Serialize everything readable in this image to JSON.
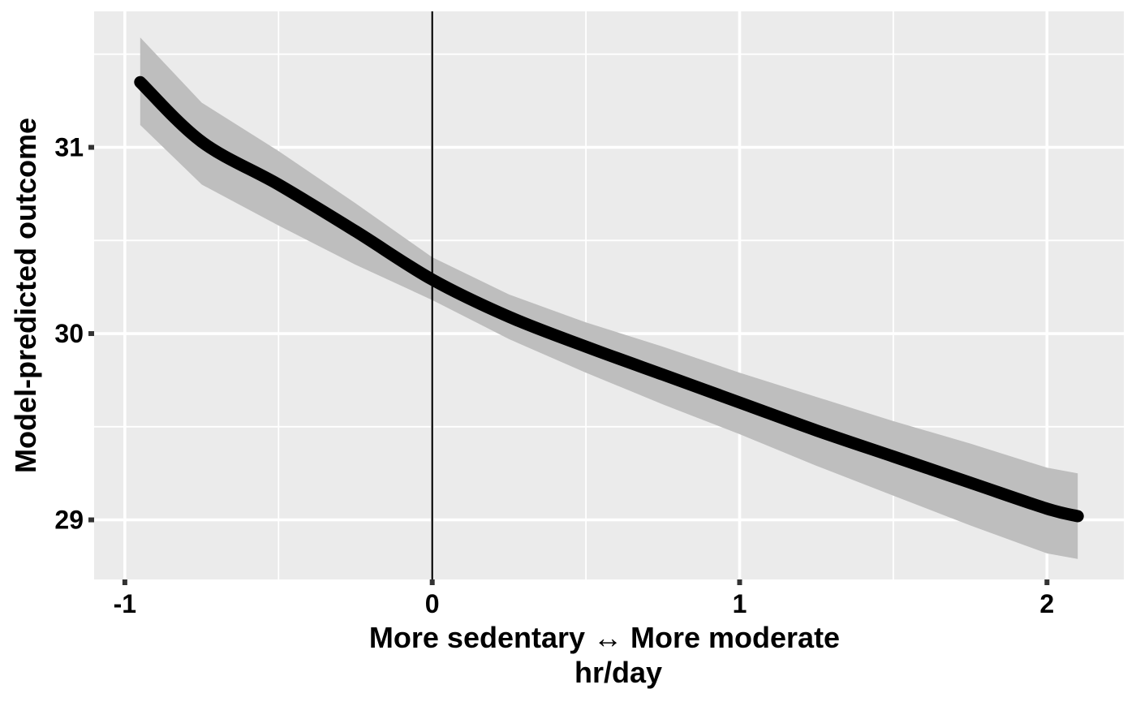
{
  "colors": {
    "panel_background": "#EBEBEB",
    "grid": "#FFFFFF",
    "line": "#000000",
    "ribbon": "#BEBEBE",
    "ticks": "#333333",
    "reference_line": "#000000"
  },
  "chart_data": {
    "type": "line",
    "title": "",
    "xlabel": "More sedentary ↔ More moderate",
    "xlabel_line2": "hr/day",
    "ylabel": "Model-predicted outcome",
    "xlim": [
      -1.1,
      2.25
    ],
    "ylim": [
      28.68,
      31.73
    ],
    "x_ticks": [
      -1,
      0,
      1,
      2
    ],
    "x_tick_labels": [
      "-1",
      "0",
      "1",
      "2"
    ],
    "y_ticks": [
      29,
      30,
      31
    ],
    "y_tick_labels": [
      "29",
      "30",
      "31"
    ],
    "x_minor_gridlines": [
      -0.5,
      0.5,
      1.5
    ],
    "y_minor_gridlines": [
      29.5,
      30.5,
      31.5
    ],
    "grid": true,
    "legend": "none",
    "reference_vline_x": 0,
    "series": [
      {
        "x": [
          -0.95,
          -0.75,
          -0.5,
          -0.25,
          0,
          0.25,
          0.5,
          0.75,
          1,
          1.25,
          1.5,
          1.75,
          2,
          2.1
        ],
        "y": [
          31.35,
          31.03,
          30.8,
          30.55,
          30.29,
          30.09,
          29.93,
          29.78,
          29.63,
          29.48,
          29.34,
          29.2,
          29.06,
          29.02
        ],
        "lower": [
          31.12,
          30.8,
          30.58,
          30.37,
          30.18,
          29.97,
          29.79,
          29.62,
          29.46,
          29.29,
          29.13,
          28.97,
          28.82,
          28.79
        ],
        "upper": [
          31.59,
          31.24,
          30.98,
          30.7,
          30.41,
          30.21,
          30.06,
          29.93,
          29.79,
          29.66,
          29.53,
          29.41,
          29.28,
          29.25
        ]
      }
    ]
  }
}
